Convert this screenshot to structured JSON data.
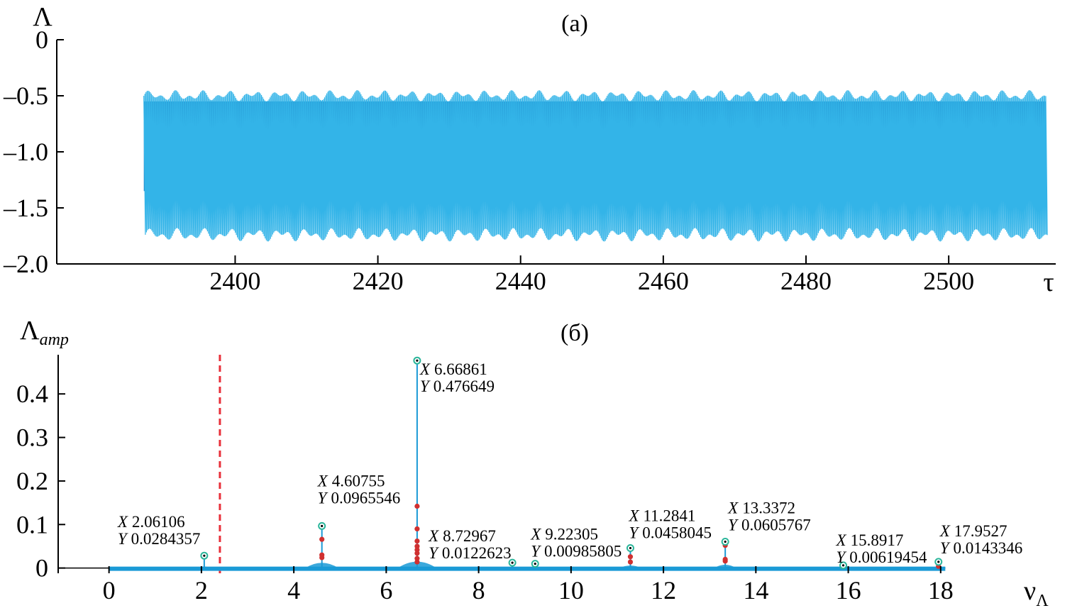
{
  "chart_data": [
    {
      "type": "line",
      "panel_label": "(a)",
      "ylabel": "Λ",
      "xlabel": "τ",
      "xlim": [
        2375,
        2515
      ],
      "ylim": [
        -2.0,
        0.0
      ],
      "x_ticks": [
        2400,
        2420,
        2440,
        2460,
        2480,
        2500
      ],
      "x_tick_labels": [
        "2400",
        "2420",
        "2440",
        "2460",
        "2480",
        "2500"
      ],
      "y_ticks": [
        0,
        -0.5,
        -1.0,
        -1.5,
        -2.0
      ],
      "y_tick_labels": [
        "0",
        "–0.5",
        "–1.0",
        "–1.5",
        "–2.0"
      ],
      "series": [
        {
          "x_start": 2387.2,
          "x_end": 2513.6,
          "oscillation_upper_envelope": -0.45,
          "oscillation_lower_envelope": -1.8,
          "dense_band": [
            -1.35,
            -0.55
          ],
          "period_approx": 0.15,
          "color": "#33b4e8",
          "band_color": "#0072bd"
        }
      ]
    },
    {
      "type": "line",
      "panel_label": "(б)",
      "ylabel": "Λ",
      "ylabel_subscript": "amp",
      "xlabel": "ν",
      "xlabel_subscript": "Λ",
      "xlim": [
        -1.1,
        19.6
      ],
      "ylim": [
        -0.012,
        0.49
      ],
      "x_ticks": [
        0,
        2,
        4,
        6,
        8,
        10,
        12,
        14,
        16,
        18
      ],
      "x_tick_labels": [
        "0",
        "2",
        "4",
        "6",
        "8",
        "10",
        "12",
        "14",
        "16",
        "18"
      ],
      "y_ticks": [
        0,
        0.1,
        0.2,
        0.3,
        0.4
      ],
      "y_tick_labels": [
        "0",
        "0.1",
        "0.2",
        "0.3",
        "0.4"
      ],
      "baseline_x": [
        0,
        18.1
      ],
      "vertical_reference_line": {
        "x": 2.4,
        "color": "#e8303a",
        "style": "dashed"
      },
      "peaks": [
        {
          "x": 2.06106,
          "y": 0.0284357,
          "x_label": "2.06106",
          "y_label": "0.0284357",
          "width": 0.04
        },
        {
          "x": 4.60755,
          "y": 0.0965546,
          "x_label": "4.60755",
          "y_label": "0.0965546",
          "width": 0.12,
          "sub_points": [
            0.066,
            0.03,
            0.024
          ]
        },
        {
          "x": 6.66861,
          "y": 0.476649,
          "x_label": "6.66861",
          "y_label": "0.476649",
          "width": 0.14,
          "sub_points": [
            0.142,
            0.09,
            0.062,
            0.05,
            0.042,
            0.034,
            0.022,
            0.014
          ]
        },
        {
          "x": 8.72967,
          "y": 0.0122623,
          "x_label": "8.72967",
          "y_label": "0.0122623",
          "width": 0.03
        },
        {
          "x": 9.22305,
          "y": 0.00985805,
          "x_label": "9.22305",
          "y_label": "0.00985805",
          "width": 0.03
        },
        {
          "x": 11.2841,
          "y": 0.0458045,
          "x_label": "11.2841",
          "y_label": "0.0458045",
          "width": 0.08,
          "sub_points": [
            0.026,
            0.014
          ]
        },
        {
          "x": 13.3372,
          "y": 0.0605767,
          "x_label": "13.3372",
          "y_label": "0.0605767",
          "width": 0.08,
          "sub_points": [
            0.052,
            0.02,
            0.016
          ]
        },
        {
          "x": 15.8917,
          "y": 0.00619454,
          "x_label": "15.8917",
          "y_label": "0.00619454",
          "width": 0.03
        },
        {
          "x": 17.9527,
          "y": 0.0143346,
          "x_label": "17.9527",
          "y_label": "0.0143346",
          "width": 0.03,
          "sub_points": [
            0.004
          ]
        }
      ],
      "annotation_prefix_x": "X",
      "annotation_prefix_y": "Y",
      "line_color": "#1a9ad6",
      "marker_color": "#d03030",
      "peak_marker_color": "#2bb59a"
    }
  ]
}
